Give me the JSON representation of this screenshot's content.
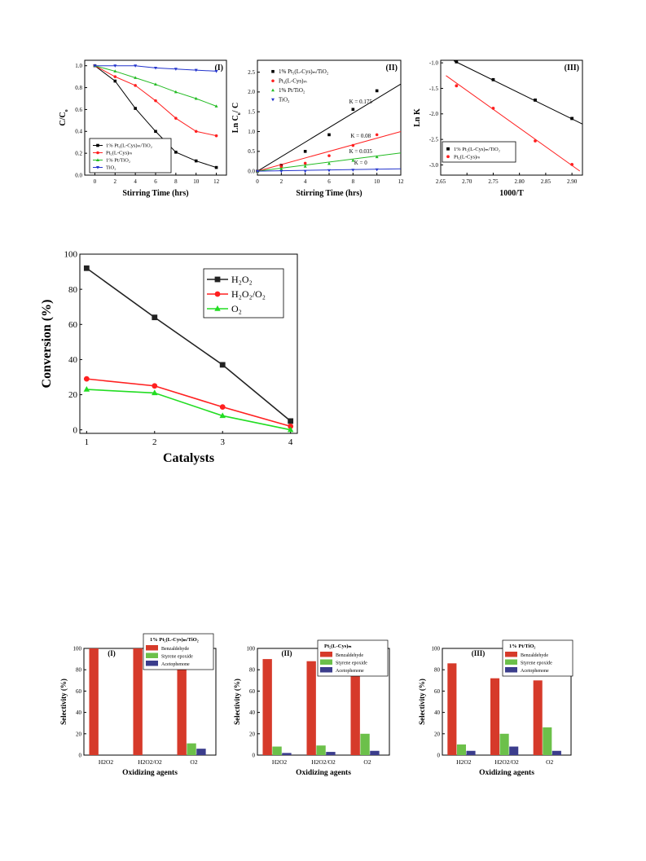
{
  "chart_data": [
    {
      "id": "kinetics-I",
      "type": "line",
      "panel_label": "(I)",
      "xlabel": "Stirring Time (hrs)",
      "ylabel": "C/C",
      "ylabel_sub": "o",
      "xlim": [
        -1,
        13
      ],
      "ylim": [
        0,
        1.05
      ],
      "xticks": [
        0,
        2,
        4,
        6,
        8,
        10,
        12
      ],
      "yticks": [
        0.0,
        0.2,
        0.4,
        0.6,
        0.8,
        1.0
      ],
      "legend_position": "bottom-left",
      "series": [
        {
          "name": "1% Pt₅(L-Cys)ₘ/TiO₂",
          "color": "#000000",
          "marker": "square",
          "x": [
            0,
            2,
            4,
            6,
            8,
            10,
            12
          ],
          "y": [
            1.0,
            0.86,
            0.61,
            0.4,
            0.21,
            0.13,
            0.07
          ]
        },
        {
          "name": "Pt₅(L-Cys)ₘ",
          "color": "#ff2020",
          "marker": "circle",
          "x": [
            0,
            2,
            4,
            6,
            8,
            10,
            12
          ],
          "y": [
            1.0,
            0.9,
            0.82,
            0.68,
            0.52,
            0.4,
            0.36
          ]
        },
        {
          "name": "1% Pt/TiO₂",
          "color": "#22bb22",
          "marker": "triangle",
          "x": [
            0,
            2,
            4,
            6,
            8,
            10,
            12
          ],
          "y": [
            1.0,
            0.95,
            0.89,
            0.83,
            0.76,
            0.7,
            0.63
          ]
        },
        {
          "name": "TiO₂",
          "color": "#2233cc",
          "marker": "triangle-down",
          "x": [
            0,
            2,
            4,
            6,
            8,
            10,
            12
          ],
          "y": [
            1.0,
            1.0,
            1.0,
            0.98,
            0.97,
            0.96,
            0.95
          ]
        }
      ]
    },
    {
      "id": "kinetics-II",
      "type": "scatter",
      "panel_label": "(II)",
      "xlabel": "Stirring Time (hrs)",
      "ylabel": "Ln C",
      "ylabel_sub": "o",
      "ylabel_tail": "/ C",
      "xlim": [
        0,
        12
      ],
      "ylim": [
        -0.1,
        2.8
      ],
      "xticks": [
        0,
        2,
        4,
        6,
        8,
        10,
        12
      ],
      "yticks": [
        0.0,
        0.5,
        1.0,
        1.5,
        2.0,
        2.5
      ],
      "legend_position": "top-left",
      "series": [
        {
          "name": "1% Pt₅(L-Cys)ₘ/TiO₂",
          "color": "#000000",
          "marker": "square",
          "x": [
            0,
            2,
            4,
            6,
            8,
            10
          ],
          "y": [
            0.0,
            0.15,
            0.5,
            0.92,
            1.56,
            2.03
          ],
          "fit": [
            [
              0,
              0.0
            ],
            [
              12,
              2.2
            ]
          ],
          "annotation": "K = 0.175"
        },
        {
          "name": "Pt₅(L-Cys)ₘ",
          "color": "#ff2020",
          "marker": "circle",
          "x": [
            0,
            2,
            4,
            6,
            8,
            10
          ],
          "y": [
            0.0,
            0.11,
            0.2,
            0.39,
            0.65,
            0.92
          ],
          "fit": [
            [
              0,
              0.0
            ],
            [
              12,
              1.0
            ]
          ],
          "annotation": "K = 0.08"
        },
        {
          "name": "1% Pt/TiO₂",
          "color": "#22bb22",
          "marker": "triangle",
          "x": [
            0,
            2,
            4,
            6,
            8,
            10
          ],
          "y": [
            0.0,
            0.05,
            0.12,
            0.19,
            0.27,
            0.36
          ],
          "fit": [
            [
              0,
              0.0
            ],
            [
              12,
              0.46
            ]
          ],
          "annotation": "K = 0.035"
        },
        {
          "name": "TiO₂",
          "color": "#2233cc",
          "marker": "triangle-down",
          "x": [
            0,
            2,
            4,
            6,
            8,
            10
          ],
          "y": [
            0.0,
            0.0,
            0.0,
            0.02,
            0.03,
            0.04
          ],
          "fit": [
            [
              0,
              0.0
            ],
            [
              12,
              0.06
            ]
          ],
          "annotation": "K = 0"
        }
      ]
    },
    {
      "id": "arrhenius-III",
      "type": "scatter",
      "panel_label": "(III)",
      "xlabel": "1000/T",
      "ylabel": "Ln K",
      "xlim": [
        2.65,
        2.92
      ],
      "ylim": [
        -3.2,
        -0.95
      ],
      "xticks": [
        2.65,
        2.7,
        2.75,
        2.8,
        2.85,
        2.9
      ],
      "yticks": [
        -1.0,
        -1.5,
        -2.0,
        -2.5,
        -3.0
      ],
      "legend_position": "bottom-left",
      "series": [
        {
          "name": "1% Pt₅(L-Cys)ₘ/TiO₂",
          "color": "#000000",
          "marker": "square",
          "x": [
            2.68,
            2.75,
            2.83,
            2.9
          ],
          "y": [
            -0.98,
            -1.33,
            -1.73,
            -2.09
          ],
          "fit": [
            [
              2.675,
              -0.96
            ],
            [
              2.92,
              -2.2
            ]
          ]
        },
        {
          "name": "Pt₅(L-Cys)ₘ",
          "color": "#ff2020",
          "marker": "circle",
          "x": [
            2.68,
            2.75,
            2.83,
            2.9
          ],
          "y": [
            -1.45,
            -1.89,
            -2.53,
            -2.99
          ],
          "fit": [
            [
              2.66,
              -1.25
            ],
            [
              2.915,
              -3.12
            ]
          ]
        }
      ]
    },
    {
      "id": "conversion",
      "type": "line",
      "xlabel": "Catalysts",
      "ylabel": "Conversion (%)",
      "xlim": [
        0.9,
        4.1
      ],
      "ylim": [
        -2,
        100
      ],
      "xticks": [
        1,
        2,
        3,
        4
      ],
      "yticks": [
        0,
        20,
        40,
        60,
        80,
        100
      ],
      "legend_position": "top-right",
      "series": [
        {
          "name": "H₂O₂",
          "color": "#222222",
          "marker": "square",
          "x": [
            1,
            2,
            3,
            4
          ],
          "y": [
            92,
            64,
            37,
            5
          ]
        },
        {
          "name": "H₂O₂/O₂",
          "color": "#ff2020",
          "marker": "circle",
          "x": [
            1,
            2,
            3,
            4
          ],
          "y": [
            29,
            25,
            13,
            2
          ]
        },
        {
          "name": "O₂",
          "color": "#22dd22",
          "marker": "triangle",
          "x": [
            1,
            2,
            3,
            4
          ],
          "y": [
            23,
            21,
            8,
            0
          ]
        }
      ]
    },
    {
      "id": "selectivity-I",
      "type": "bar",
      "panel_label": "(I)",
      "legend_title": "1% Pt₅(L-Cys)ₘ/TiO₂",
      "xlabel": "Oxidizing agents",
      "ylabel": "Selectivity (%)",
      "ylim": [
        0,
        100
      ],
      "yticks": [
        0,
        20,
        40,
        60,
        80,
        100
      ],
      "categories": [
        "H2O2",
        "H2O2/O2",
        "O2"
      ],
      "series": [
        {
          "name": "Benzaldehyde",
          "color": "#d63a2a",
          "values": [
            100,
            100,
            83
          ]
        },
        {
          "name": "Styrene epoxide",
          "color": "#6cc04a",
          "values": [
            0,
            0,
            11
          ]
        },
        {
          "name": "Acetophenone",
          "color": "#3b3d8c",
          "values": [
            0,
            0,
            6
          ]
        }
      ]
    },
    {
      "id": "selectivity-II",
      "type": "bar",
      "panel_label": "(II)",
      "legend_title": "Pt₅(L-Cys)ₘ",
      "xlabel": "Oxidizing agents",
      "ylabel": "Selectivity (%)",
      "ylim": [
        0,
        100
      ],
      "yticks": [
        0,
        20,
        40,
        60,
        80,
        100
      ],
      "categories": [
        "H2O2",
        "H2O2/O2",
        "O2"
      ],
      "series": [
        {
          "name": "Benzaldehyde",
          "color": "#d63a2a",
          "values": [
            90,
            88,
            76
          ]
        },
        {
          "name": "Styrene epoxide",
          "color": "#6cc04a",
          "values": [
            8,
            9,
            20
          ]
        },
        {
          "name": "Acetophenone",
          "color": "#3b3d8c",
          "values": [
            2,
            3,
            4
          ]
        }
      ]
    },
    {
      "id": "selectivity-III",
      "type": "bar",
      "panel_label": "(III)",
      "legend_title": "1% Pt/TiO₂",
      "xlabel": "Oxidizing agents",
      "ylabel": "Selectivity (%)",
      "ylim": [
        0,
        100
      ],
      "yticks": [
        0,
        20,
        40,
        60,
        80,
        100
      ],
      "categories": [
        "H2O2",
        "H2O2/O2",
        "O2"
      ],
      "series": [
        {
          "name": "Benzaldehyde",
          "color": "#d63a2a",
          "values": [
            86,
            72,
            70
          ]
        },
        {
          "name": "Styrene epoxide",
          "color": "#6cc04a",
          "values": [
            10,
            20,
            26
          ]
        },
        {
          "name": "Acetophenone",
          "color": "#3b3d8c",
          "values": [
            4,
            8,
            4
          ]
        }
      ]
    }
  ]
}
